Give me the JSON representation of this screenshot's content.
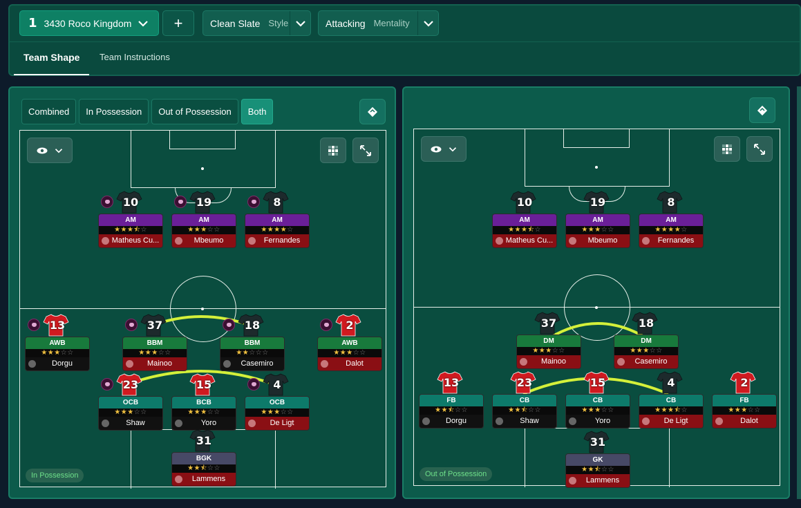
{
  "topbar": {
    "formation_number": "1",
    "formation_name": "3430 Roco Kingdom",
    "add_label": "+",
    "style_value": "Clean Slate",
    "style_label": "Style",
    "mentality_value": "Attacking",
    "mentality_label": "Mentality"
  },
  "tabs": [
    {
      "label": "Team Shape"
    },
    {
      "label": "Team Instructions"
    }
  ],
  "view_modes": [
    "Combined",
    "In Possession",
    "Out of Possession",
    "Both"
  ],
  "view_mode_selected": "Both",
  "left_pitch": {
    "phase_label": "In Possession",
    "players": [
      {
        "number": "10",
        "role": "AM",
        "stars": 3.5,
        "name": "Matheus Cu..."
      },
      {
        "number": "19",
        "role": "AM",
        "stars": 3,
        "name": "Mbeumo"
      },
      {
        "number": "8",
        "role": "AM",
        "stars": 4,
        "name": "Fernandes"
      },
      {
        "number": "13",
        "role": "AWB",
        "stars": 3,
        "name": "Dorgu"
      },
      {
        "number": "37",
        "role": "BBM",
        "stars": 3,
        "name": "Mainoo"
      },
      {
        "number": "18",
        "role": "BBM",
        "stars": 2,
        "name": "Casemiro"
      },
      {
        "number": "2",
        "role": "AWB",
        "stars": 3,
        "name": "Dalot"
      },
      {
        "number": "23",
        "role": "OCB",
        "stars": 3,
        "name": "Shaw"
      },
      {
        "number": "15",
        "role": "BCB",
        "stars": 3,
        "name": "Yoro"
      },
      {
        "number": "4",
        "role": "OCB",
        "stars": 3,
        "name": "De Ligt"
      },
      {
        "number": "31",
        "role": "BGK",
        "stars": 2.5,
        "name": "Lammens"
      }
    ]
  },
  "right_pitch": {
    "phase_label": "Out of Possession",
    "players": [
      {
        "number": "10",
        "role": "AM",
        "stars": 3.5,
        "name": "Matheus Cu..."
      },
      {
        "number": "19",
        "role": "AM",
        "stars": 3,
        "name": "Mbeumo"
      },
      {
        "number": "8",
        "role": "AM",
        "stars": 4,
        "name": "Fernandes"
      },
      {
        "number": "37",
        "role": "DM",
        "stars": 3,
        "name": "Mainoo"
      },
      {
        "number": "18",
        "role": "DM",
        "stars": 3,
        "name": "Casemiro"
      },
      {
        "number": "13",
        "role": "FB",
        "stars": 2.5,
        "name": "Dorgu"
      },
      {
        "number": "23",
        "role": "CB",
        "stars": 2.5,
        "name": "Shaw"
      },
      {
        "number": "15",
        "role": "CB",
        "stars": 3,
        "name": "Yoro"
      },
      {
        "number": "4",
        "role": "CB",
        "stars": 3.5,
        "name": "De Ligt"
      },
      {
        "number": "2",
        "role": "FB",
        "stars": 3,
        "name": "Dalot"
      },
      {
        "number": "31",
        "role": "GK",
        "stars": 2.5,
        "name": "Lammens"
      }
    ]
  },
  "icons": {
    "chevron": "chevron-down-icon",
    "eye": "eye-icon",
    "grid": "grid-icon",
    "expand": "expand-icon",
    "tactic": "tactic-diamond-icon",
    "shirt": "shirt-icon"
  },
  "colors": {
    "accent": "#0e8064",
    "panel": "#0c5b4b",
    "link_line": "#d4f03a",
    "am_role": "#6a1f98",
    "mid_role": "#187a3c",
    "def_role": "#0d7a6a",
    "gk_role": "#474966",
    "name_red": "#8a0f14"
  }
}
